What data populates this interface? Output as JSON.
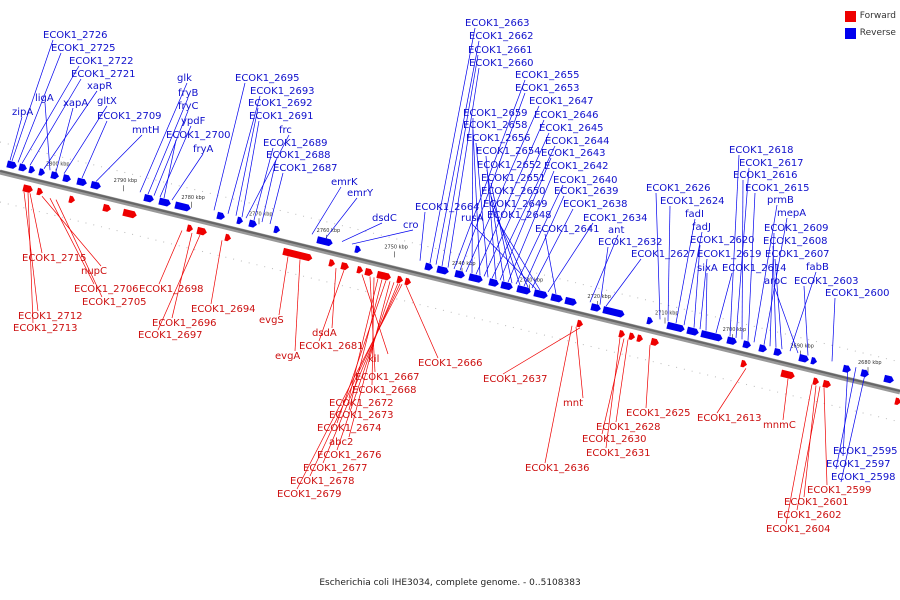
{
  "caption": "Escherichia coli IHE3034, complete genome. - 0..5108383",
  "legend": [
    {
      "label": "Forward",
      "color": "#ee0000"
    },
    {
      "label": "Reverse",
      "color": "#0000ee"
    }
  ],
  "colors": {
    "forward": "#ee0000",
    "reverse": "#0000ee",
    "backbone": "#666666"
  },
  "ticks": [
    {
      "label": "2800 kbp"
    },
    {
      "label": "2790 kbp"
    },
    {
      "label": "2780 kbp"
    },
    {
      "label": "2770 kbp"
    },
    {
      "label": "2760 kbp"
    },
    {
      "label": "2750 kbp"
    },
    {
      "label": "2740 kbp"
    },
    {
      "label": "2730 kbp"
    },
    {
      "label": "2720 kbp"
    },
    {
      "label": "2710 kbp"
    },
    {
      "label": "2700 kbp"
    },
    {
      "label": "2690 kbp"
    },
    {
      "label": "2680 kbp"
    }
  ],
  "reverse_labels": [
    "ECOK1_2726",
    "ECOK1_2725",
    "ECOK1_2722",
    "ECOK1_2721",
    "xapR",
    "ligA",
    "xapA",
    "gltX",
    "zipA",
    "ECOK1_2709",
    "mntH",
    "glk",
    "fryB",
    "fryC",
    "ypdF",
    "ECOK1_2700",
    "fryA",
    "ECOK1_2695",
    "ECOK1_2693",
    "ECOK1_2692",
    "ECOK1_2691",
    "frc",
    "ECOK1_2689",
    "ECOK1_2688",
    "ECOK1_2687",
    "emrK",
    "emrY",
    "dsdC",
    "cro",
    "ECOK1_2664",
    "ECOK1_2663",
    "ECOK1_2662",
    "ECOK1_2661",
    "ECOK1_2660",
    "ECOK1_2655",
    "ECOK1_2653",
    "ECOK1_2647",
    "ECOK1_2659",
    "ECOK1_2646",
    "ECOK1_2658",
    "ECOK1_2645",
    "ECOK1_2656",
    "ECOK1_2644",
    "ECOK1_2654",
    "ECOK1_2643",
    "ECOK1_2652",
    "ECOK1_2642",
    "ECOK1_2651",
    "ECOK1_2640",
    "ECOK1_2650",
    "ECOK1_2639",
    "ECOK1_2649",
    "ECOK1_2638",
    "rusA",
    "ECOK1_2648",
    "ECOK1_2634",
    "ECOK1_2641",
    "ant",
    "ECOK1_2632",
    "ECOK1_2627",
    "ECOK1_2626",
    "ECOK1_2624",
    "fadI",
    "fadJ",
    "ECOK1_2620",
    "ECOK1_2619",
    "sixA",
    "ECOK1_2614",
    "ECOK1_2618",
    "ECOK1_2617",
    "ECOK1_2616",
    "ECOK1_2615",
    "prmB",
    "mepA",
    "ECOK1_2609",
    "ECOK1_2608",
    "ECOK1_2607",
    "fabB",
    "aroC",
    "ECOK1_2603",
    "ECOK1_2600",
    "ECOK1_2595",
    "ECOK1_2597",
    "ECOK1_2598"
  ],
  "forward_labels": [
    "ECOK1_2715",
    "nupC",
    "ECOK1_2706",
    "ECOK1_2705",
    "ECOK1_2712",
    "ECOK1_2713",
    "ECOK1_2698",
    "ECOK1_2696",
    "ECOK1_2697",
    "ECOK1_2694",
    "evgS",
    "evgA",
    "dsdA",
    "ECOK1_2681",
    "kil",
    "ECOK1_2667",
    "ECOK1_2668",
    "ECOK1_2672",
    "ECOK1_2673",
    "ECOK1_2674",
    "abc2",
    "ECOK1_2676",
    "ECOK1_2677",
    "ECOK1_2678",
    "ECOK1_2679",
    "ECOK1_2666",
    "ECOK1_2637",
    "mnt",
    "ECOK1_2636",
    "ECOK1_2625",
    "ECOK1_2628",
    "ECOK1_2630",
    "ECOK1_2631",
    "ECOK1_2613",
    "mnmC",
    "ECOK1_2599",
    "ECOK1_2601",
    "ECOK1_2602",
    "ECOK1_2604"
  ]
}
